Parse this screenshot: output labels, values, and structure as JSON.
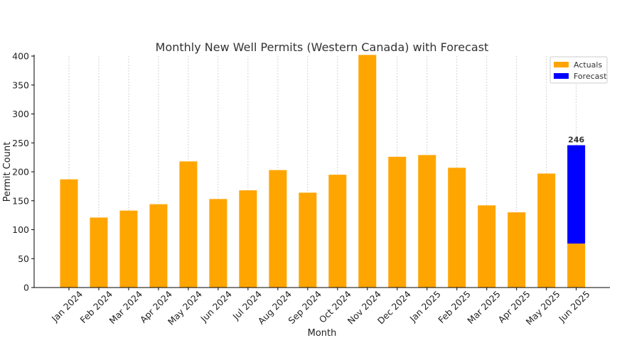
{
  "chart_data": {
    "type": "bar",
    "title": "Monthly New Well Permits (Western Canada) with Forecast",
    "xlabel": "Month",
    "ylabel": "Permit Count",
    "ylim": [
      0,
      400
    ],
    "yticks": [
      0,
      50,
      100,
      150,
      200,
      250,
      300,
      350,
      400
    ],
    "grid": "x-dashed",
    "legend_position": "top-right",
    "categories": [
      "Jan 2024",
      "Feb 2024",
      "Mar 2024",
      "Apr 2024",
      "May 2024",
      "Jun 2024",
      "Jul 2024",
      "Aug 2024",
      "Sep 2024",
      "Oct 2024",
      "Nov 2024",
      "Dec 2024",
      "Jan 2025",
      "Feb 2025",
      "Mar 2025",
      "Apr 2025",
      "May 2025",
      "Jun 2025"
    ],
    "series": [
      {
        "name": "Actuals",
        "color": "#FFA500",
        "values": [
          187,
          121,
          133,
          144,
          218,
          153,
          168,
          203,
          164,
          195,
          402,
          226,
          229,
          207,
          142,
          130,
          197,
          76
        ]
      },
      {
        "name": "Forecast",
        "color": "#0000FF",
        "stacked_on": "Actuals",
        "values": [
          null,
          null,
          null,
          null,
          null,
          null,
          null,
          null,
          null,
          null,
          null,
          null,
          null,
          null,
          null,
          null,
          null,
          170
        ]
      }
    ],
    "annotations": [
      {
        "category": "Jun 2025",
        "text": "246"
      }
    ]
  }
}
